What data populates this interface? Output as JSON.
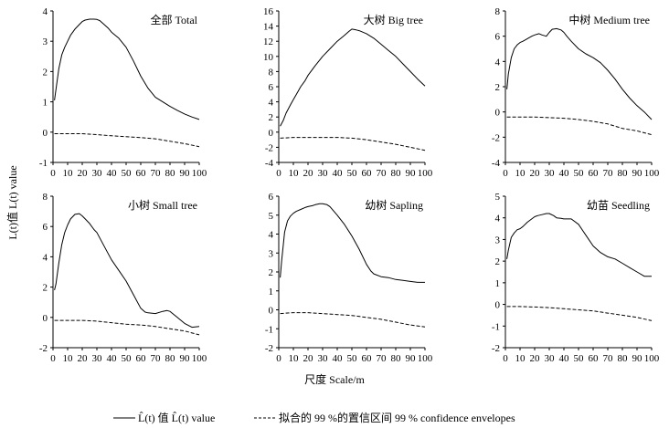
{
  "figure": {
    "xlabel": "尺度 Scale/m",
    "ylabel": "L(t)值 L(t) value",
    "legend": {
      "solid_label": "L̂(t) 值 L̂(t) value",
      "dashed_label": "拟合的 99 %的置信区间 99 % confidence envelopes"
    }
  },
  "chart_data": [
    {
      "type": "line",
      "title": "全部 Total",
      "ylim": [
        -1,
        4
      ],
      "yticks": [
        -1,
        0,
        1,
        2,
        3,
        4
      ],
      "xlim": [
        0,
        100
      ],
      "xticks": [
        0,
        10,
        20,
        30,
        40,
        50,
        60,
        70,
        80,
        90,
        100
      ],
      "series": [
        {
          "name": "observed",
          "style": "solid",
          "x": [
            1,
            2,
            4,
            6,
            8,
            10,
            12,
            15,
            18,
            20,
            22,
            25,
            28,
            30,
            32,
            35,
            38,
            40,
            45,
            50,
            55,
            60,
            65,
            70,
            75,
            80,
            85,
            90,
            95,
            100
          ],
          "y": [
            1.05,
            1.4,
            2.1,
            2.55,
            2.8,
            3.0,
            3.2,
            3.4,
            3.55,
            3.65,
            3.7,
            3.73,
            3.73,
            3.72,
            3.68,
            3.55,
            3.42,
            3.3,
            3.1,
            2.8,
            2.35,
            1.85,
            1.45,
            1.15,
            1.0,
            0.85,
            0.72,
            0.6,
            0.5,
            0.42
          ]
        },
        {
          "name": "envelope",
          "style": "dashed",
          "x": [
            1,
            10,
            20,
            30,
            40,
            50,
            60,
            70,
            80,
            90,
            100
          ],
          "y": [
            -0.05,
            -0.05,
            -0.05,
            -0.08,
            -0.12,
            -0.15,
            -0.18,
            -0.22,
            -0.3,
            -0.38,
            -0.48
          ]
        }
      ]
    },
    {
      "type": "line",
      "title": "大树 Big tree",
      "ylim": [
        -4,
        16
      ],
      "yticks": [
        -4,
        -2,
        0,
        2,
        4,
        6,
        8,
        10,
        12,
        14,
        16
      ],
      "xlim": [
        0,
        100
      ],
      "xticks": [
        0,
        10,
        20,
        30,
        40,
        50,
        60,
        70,
        80,
        90,
        100
      ],
      "series": [
        {
          "name": "observed",
          "style": "solid",
          "x": [
            1,
            3,
            5,
            8,
            10,
            13,
            15,
            18,
            20,
            25,
            30,
            35,
            40,
            45,
            48,
            50,
            53,
            55,
            60,
            65,
            70,
            75,
            80,
            85,
            90,
            95,
            100
          ],
          "y": [
            0.8,
            1.5,
            2.5,
            3.6,
            4.3,
            5.3,
            6.0,
            6.8,
            7.5,
            8.8,
            10.0,
            11.0,
            12.0,
            12.8,
            13.3,
            13.6,
            13.5,
            13.4,
            13.0,
            12.4,
            11.6,
            10.8,
            10.0,
            9.0,
            8.0,
            7.0,
            6.1
          ]
        },
        {
          "name": "envelope",
          "style": "dashed",
          "x": [
            1,
            10,
            20,
            30,
            40,
            50,
            60,
            70,
            80,
            90,
            100
          ],
          "y": [
            -0.8,
            -0.7,
            -0.7,
            -0.7,
            -0.7,
            -0.8,
            -1.0,
            -1.3,
            -1.6,
            -2.0,
            -2.4
          ]
        }
      ]
    },
    {
      "type": "line",
      "title": "中树 Medium tree",
      "ylim": [
        -4,
        8
      ],
      "yticks": [
        -4,
        -2,
        0,
        2,
        4,
        6,
        8
      ],
      "xlim": [
        0,
        100
      ],
      "xticks": [
        0,
        10,
        20,
        30,
        40,
        50,
        60,
        70,
        80,
        90,
        100
      ],
      "series": [
        {
          "name": "observed",
          "style": "solid",
          "x": [
            1,
            2,
            4,
            6,
            8,
            10,
            12,
            15,
            18,
            20,
            23,
            25,
            28,
            30,
            32,
            35,
            38,
            40,
            42,
            45,
            50,
            55,
            60,
            65,
            70,
            75,
            80,
            85,
            90,
            95,
            100
          ],
          "y": [
            1.8,
            3.0,
            4.3,
            5.0,
            5.3,
            5.5,
            5.6,
            5.8,
            6.0,
            6.1,
            6.2,
            6.1,
            6.0,
            6.3,
            6.55,
            6.6,
            6.5,
            6.3,
            6.0,
            5.6,
            5.0,
            4.6,
            4.3,
            3.9,
            3.3,
            2.6,
            1.8,
            1.1,
            0.5,
            0.0,
            -0.6
          ]
        },
        {
          "name": "envelope",
          "style": "dashed",
          "x": [
            1,
            10,
            20,
            30,
            40,
            50,
            60,
            70,
            80,
            90,
            100
          ],
          "y": [
            -0.4,
            -0.4,
            -0.4,
            -0.45,
            -0.5,
            -0.6,
            -0.75,
            -0.95,
            -1.3,
            -1.5,
            -1.8
          ]
        }
      ]
    },
    {
      "type": "line",
      "title": "小树 Small tree",
      "ylim": [
        -2,
        8
      ],
      "yticks": [
        -2,
        0,
        2,
        4,
        6,
        8
      ],
      "xlim": [
        0,
        100
      ],
      "xticks": [
        0,
        10,
        20,
        30,
        40,
        50,
        60,
        70,
        80,
        90,
        100
      ],
      "series": [
        {
          "name": "observed",
          "style": "solid",
          "x": [
            1,
            2,
            4,
            6,
            8,
            10,
            12,
            15,
            18,
            20,
            22,
            25,
            28,
            30,
            35,
            40,
            45,
            50,
            55,
            60,
            63,
            65,
            70,
            75,
            78,
            80,
            85,
            90,
            95,
            100
          ],
          "y": [
            1.8,
            2.2,
            3.6,
            4.8,
            5.6,
            6.1,
            6.5,
            6.8,
            6.85,
            6.7,
            6.5,
            6.2,
            5.8,
            5.6,
            4.7,
            3.8,
            3.1,
            2.4,
            1.5,
            0.6,
            0.35,
            0.3,
            0.25,
            0.4,
            0.45,
            0.4,
            0.0,
            -0.4,
            -0.65,
            -0.6
          ]
        },
        {
          "name": "envelope",
          "style": "dashed",
          "x": [
            1,
            10,
            20,
            30,
            40,
            50,
            60,
            70,
            80,
            90,
            100
          ],
          "y": [
            -0.2,
            -0.2,
            -0.2,
            -0.25,
            -0.35,
            -0.45,
            -0.5,
            -0.6,
            -0.75,
            -0.9,
            -1.15
          ]
        }
      ]
    },
    {
      "type": "line",
      "title": "幼树 Sapling",
      "ylim": [
        -2,
        6
      ],
      "yticks": [
        -2,
        -1,
        0,
        1,
        2,
        3,
        4,
        5,
        6
      ],
      "xlim": [
        0,
        100
      ],
      "xticks": [
        0,
        10,
        20,
        30,
        40,
        50,
        60,
        70,
        80,
        90,
        100
      ],
      "series": [
        {
          "name": "observed",
          "style": "solid",
          "x": [
            1,
            2,
            4,
            6,
            8,
            10,
            12,
            15,
            18,
            20,
            23,
            25,
            28,
            30,
            33,
            35,
            40,
            45,
            50,
            55,
            60,
            63,
            65,
            70,
            75,
            80,
            85,
            90,
            95,
            100
          ],
          "y": [
            1.7,
            2.6,
            4.1,
            4.7,
            4.95,
            5.1,
            5.2,
            5.3,
            5.4,
            5.45,
            5.5,
            5.55,
            5.6,
            5.6,
            5.55,
            5.45,
            5.0,
            4.5,
            3.9,
            3.2,
            2.4,
            2.05,
            1.9,
            1.75,
            1.7,
            1.6,
            1.55,
            1.5,
            1.45,
            1.45
          ]
        },
        {
          "name": "envelope",
          "style": "dashed",
          "x": [
            1,
            10,
            20,
            30,
            40,
            50,
            60,
            70,
            80,
            90,
            100
          ],
          "y": [
            -0.2,
            -0.15,
            -0.15,
            -0.2,
            -0.25,
            -0.3,
            -0.4,
            -0.5,
            -0.65,
            -0.8,
            -0.9
          ]
        }
      ]
    },
    {
      "type": "line",
      "title": "幼苗 Seedling",
      "ylim": [
        -2,
        5
      ],
      "yticks": [
        -2,
        -1,
        0,
        1,
        2,
        3,
        4,
        5
      ],
      "xlim": [
        0,
        100
      ],
      "xticks": [
        0,
        10,
        20,
        30,
        40,
        50,
        60,
        70,
        80,
        90,
        100
      ],
      "series": [
        {
          "name": "observed",
          "style": "solid",
          "x": [
            1,
            2,
            4,
            6,
            8,
            10,
            12,
            15,
            18,
            20,
            22,
            25,
            28,
            30,
            33,
            35,
            38,
            40,
            45,
            50,
            55,
            60,
            65,
            70,
            75,
            80,
            85,
            90,
            95,
            100
          ],
          "y": [
            2.1,
            2.5,
            3.1,
            3.3,
            3.45,
            3.5,
            3.6,
            3.8,
            3.95,
            4.05,
            4.1,
            4.15,
            4.2,
            4.2,
            4.1,
            4.0,
            3.98,
            3.95,
            3.95,
            3.7,
            3.2,
            2.7,
            2.4,
            2.2,
            2.1,
            1.9,
            1.7,
            1.5,
            1.3,
            1.3
          ]
        },
        {
          "name": "envelope",
          "style": "dashed",
          "x": [
            1,
            10,
            20,
            30,
            40,
            50,
            60,
            70,
            80,
            90,
            100
          ],
          "y": [
            -0.1,
            -0.1,
            -0.12,
            -0.15,
            -0.2,
            -0.25,
            -0.3,
            -0.4,
            -0.5,
            -0.6,
            -0.75
          ]
        }
      ]
    }
  ]
}
